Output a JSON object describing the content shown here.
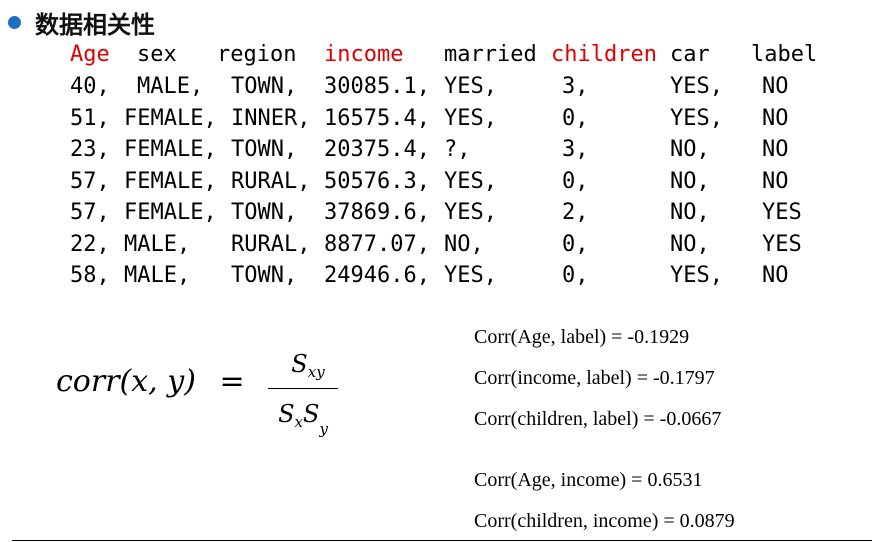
{
  "title": "数据相关性",
  "table": {
    "headers": [
      {
        "text": "Age",
        "highlight": true
      },
      {
        "text": "sex",
        "highlight": false
      },
      {
        "text": "region",
        "highlight": false
      },
      {
        "text": "income",
        "highlight": true
      },
      {
        "text": "married",
        "highlight": false
      },
      {
        "text": "children",
        "highlight": true
      },
      {
        "text": "car",
        "highlight": false
      },
      {
        "text": "label",
        "highlight": false
      }
    ],
    "rows": [
      [
        "40,",
        "MALE,",
        "TOWN,",
        "30085.1,",
        "YES,",
        "3,",
        "YES,",
        "NO"
      ],
      [
        "51,",
        "FEMALE,",
        "INNER,",
        "16575.4,",
        "YES,",
        "0,",
        "YES,",
        "NO"
      ],
      [
        "23,",
        "FEMALE,",
        "TOWN,",
        "20375.4,",
        "?,",
        "3,",
        "NO,",
        "NO"
      ],
      [
        "57,",
        "FEMALE,",
        "RURAL,",
        "50576.3,",
        "YES,",
        "0,",
        "NO,",
        "NO"
      ],
      [
        "57,",
        "FEMALE,",
        "TOWN,",
        "37869.6,",
        "YES,",
        "2,",
        "NO,",
        "YES"
      ],
      [
        "22,",
        "MALE,",
        "RURAL,",
        "8877.07,",
        "NO,",
        "0,",
        "NO,",
        "YES"
      ],
      [
        "58,",
        "MALE,",
        "TOWN,",
        "24946.6,",
        "YES,",
        "0,",
        "YES,",
        "NO"
      ]
    ]
  },
  "formula": {
    "lhs": "corr(x, y)",
    "equals": "=",
    "num_main": "S",
    "num_sub": "xy",
    "den_s1": "S",
    "den_sub1": "x",
    "den_s2": "S",
    "den_sub2": "y"
  },
  "correlations": [
    "Corr(Age, label) = -0.1929",
    "Corr(income, label) = -0.1797",
    "Corr(children, label) = -0.0667",
    "Corr(Age, income) = 0.6531",
    "Corr(children, income) = 0.0879"
  ],
  "colors": {
    "highlight": "#e00000",
    "bullet": "#1f6fc5"
  }
}
